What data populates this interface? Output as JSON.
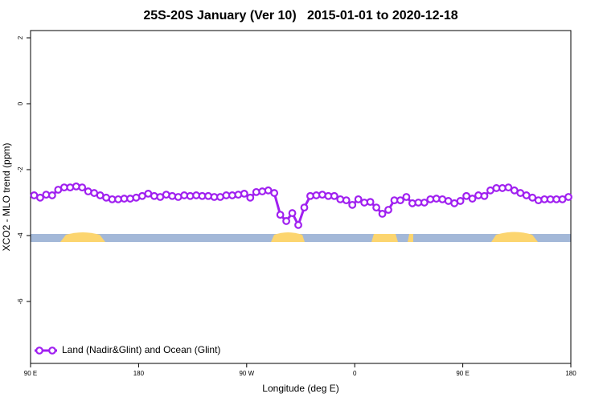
{
  "chart_data": {
    "type": "line",
    "title": "25S-20S January (Ver 10)   2015-01-01 to 2020-12-18",
    "x_label": "Longitude (deg E)",
    "y_label": "XCO2 - MLO trend (ppm)",
    "xlim": [
      90,
      540
    ],
    "ylim": [
      -7.88,
      2.22
    ],
    "xticks": [
      {
        "value": 90,
        "label": "90 E"
      },
      180,
      {
        "value": 270,
        "label": "90 W"
      },
      {
        "value": 360,
        "label": "0"
      },
      {
        "value": 450,
        "label": "90 E"
      },
      {
        "value": 540,
        "label": "180"
      }
    ],
    "yticks": [
      2,
      0,
      -2,
      -4,
      -6
    ],
    "legend": "bottom-left",
    "x": [
      93,
      98,
      103,
      108,
      113,
      118,
      123,
      128,
      133,
      138,
      143,
      148,
      153,
      158,
      163,
      168,
      173,
      178,
      183,
      188,
      193,
      198,
      203,
      208,
      213,
      218,
      223,
      228,
      233,
      238,
      243,
      248,
      253,
      258,
      263,
      268,
      273,
      278,
      283,
      288,
      293,
      298,
      303,
      308,
      313,
      318,
      323,
      328,
      333,
      338,
      343,
      348,
      353,
      358,
      363,
      368,
      373,
      378,
      383,
      388,
      393,
      398,
      403,
      408,
      413,
      418,
      423,
      428,
      433,
      438,
      443,
      448,
      453,
      458,
      463,
      468,
      473,
      478,
      483,
      488,
      493,
      498,
      503,
      508,
      513,
      518,
      523,
      528,
      533,
      538
    ],
    "series": [
      {
        "name": "Land (Nadir&Glint) and Ocean (Glint)",
        "color": "#a020f0",
        "values": [
          -2.78,
          -2.85,
          -2.76,
          -2.78,
          -2.61,
          -2.54,
          -2.54,
          -2.51,
          -2.54,
          -2.66,
          -2.71,
          -2.78,
          -2.85,
          -2.9,
          -2.9,
          -2.88,
          -2.88,
          -2.85,
          -2.8,
          -2.73,
          -2.8,
          -2.83,
          -2.76,
          -2.8,
          -2.83,
          -2.78,
          -2.8,
          -2.78,
          -2.8,
          -2.8,
          -2.83,
          -2.83,
          -2.78,
          -2.78,
          -2.76,
          -2.73,
          -2.85,
          -2.68,
          -2.66,
          -2.63,
          -2.71,
          -3.37,
          -3.56,
          -3.32,
          -3.68,
          -3.15,
          -2.8,
          -2.78,
          -2.76,
          -2.8,
          -2.8,
          -2.9,
          -2.93,
          -3.07,
          -2.9,
          -3.0,
          -2.98,
          -3.15,
          -3.34,
          -3.22,
          -2.93,
          -2.93,
          -2.83,
          -3.02,
          -3.0,
          -3.0,
          -2.9,
          -2.88,
          -2.9,
          -2.95,
          -3.02,
          -2.95,
          -2.8,
          -2.88,
          -2.78,
          -2.8,
          -2.63,
          -2.56,
          -2.56,
          -2.54,
          -2.63,
          -2.71,
          -2.78,
          -2.85,
          -2.93,
          -2.9,
          -2.9,
          -2.9,
          -2.9,
          -2.83
        ]
      }
    ]
  }
}
